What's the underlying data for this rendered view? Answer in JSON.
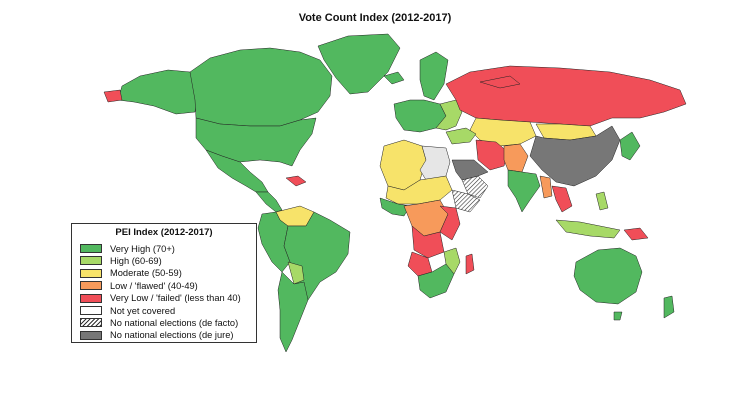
{
  "title": "Vote Count Index (2012-2017)",
  "legend": {
    "title": "PEI Index (2012-2017)",
    "items": [
      {
        "label": "Very High (70+)",
        "color": "#52b85f"
      },
      {
        "label": "High (60-69)",
        "color": "#a7d967"
      },
      {
        "label": "Moderate (50-59)",
        "color": "#f7e36a"
      },
      {
        "label": "Low / 'flawed' (40-49)",
        "color": "#f79a5b"
      },
      {
        "label": "Very Low / 'failed' (less than 40)",
        "color": "#f04e58"
      },
      {
        "label": "Not yet covered",
        "color": "#ffffff"
      },
      {
        "label": "No national elections (de facto)",
        "color": "hatched"
      },
      {
        "label": "No national elections (de jure)",
        "color": "#777777"
      }
    ]
  },
  "colors": {
    "very_high": "#52b85f",
    "high": "#a7d967",
    "moderate": "#f7e36a",
    "low": "#f79a5b",
    "very_low": "#f04e58",
    "not_covered": "#e6e6e6",
    "de_jure": "#777777"
  }
}
